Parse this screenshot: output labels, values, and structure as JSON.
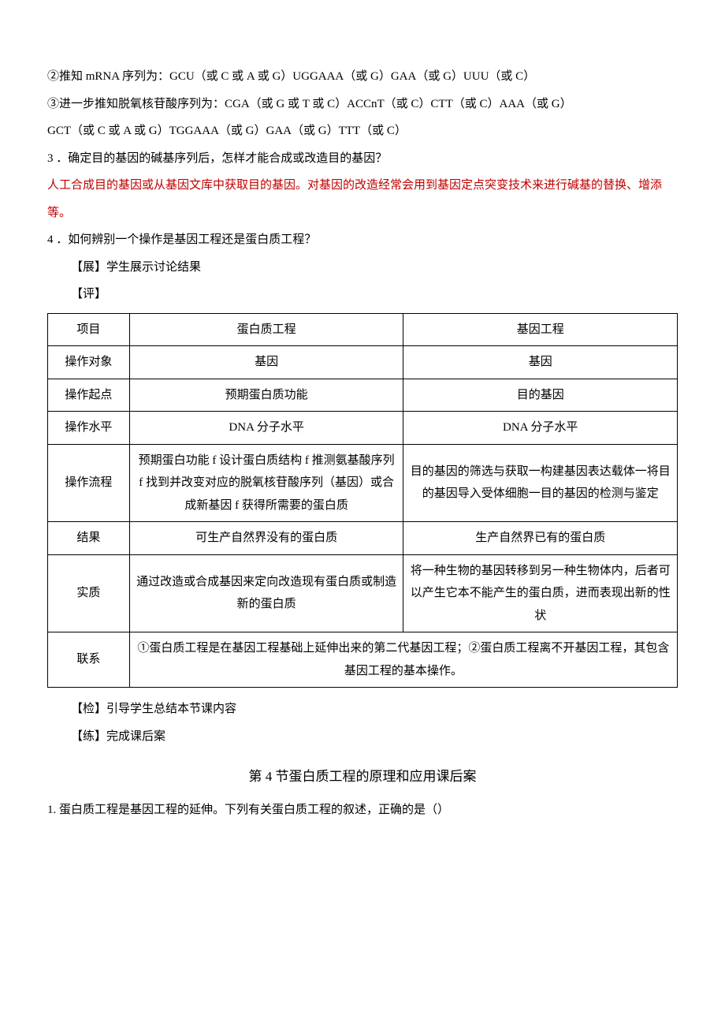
{
  "lines": {
    "l1": "②推知 mRNA 序列为：GCU（或 C 或 A 或 G）UGGAAA（或 G）GAA（或 G）UUU（或 C）",
    "l2": "③进一步推知脱氧核苷酸序列为：CGA（或 G 或 T 或 C）ACCnT（或 C）CTT（或 C）AAA（或 G）",
    "l3": "GCT（或 C 或 A 或 G）TGGAAA（或 G）GAA（或 G）TTT（或 C）",
    "l4": "3 ．确定目的基因的碱基序列后，怎样才能合成或改造目的基因？",
    "l5": "人工合成目的基因或从基因文库中获取目的基因。对基因的改造经常会用到基因定点突变技术来进行碱基的替换、增添等。",
    "l6": "4 ．如何辨别一个操作是基因工程还是蛋白质工程？",
    "l7": "【展】学生展示讨论结果",
    "l8": "【评】",
    "l9": "【检】引导学生总结本节课内容",
    "l10": "【练】完成课后案"
  },
  "table": {
    "header": {
      "c0": "项目",
      "c1": "蛋白质工程",
      "c2": "基因工程"
    },
    "rows": [
      {
        "c0": "操作对象",
        "c1": "基因",
        "c2": "基因"
      },
      {
        "c0": "操作起点",
        "c1": "预期蛋白质功能",
        "c2": "目的基因"
      },
      {
        "c0": "操作水平",
        "c1": "DNA 分子水平",
        "c2": "DNA 分子水平"
      },
      {
        "c0": "操作流程",
        "c1": "预期蛋白功能 f 设计蛋白质结构 f 推测氨基酸序列 f 找到并改变对应的脱氧核苷酸序列（基因）或合成新基因 f 获得所需要的蛋白质",
        "c2": "目的基因的筛选与获取一构建基因表达载体一将目的基因导入受体细胞一目的基因的检测与鉴定"
      },
      {
        "c0": "结果",
        "c1": "可生产自然界没有的蛋白质",
        "c2": "生产自然界已有的蛋白质"
      },
      {
        "c0": "实质",
        "c1": "通过改造或合成基因来定向改造现有蛋白质或制造新的蛋白质",
        "c2": "将一种生物的基因转移到另一种生物体内，后者可以产生它本不能产生的蛋白质，进而表现出新的性状"
      },
      {
        "c0": "联系",
        "cspan": "①蛋白质工程是在基因工程基础上延伸出来的第二代基因工程；②蛋白质工程离不开基因工程，其包含基因工程的基本操作。"
      }
    ]
  },
  "section_title": "第 4 节蛋白质工程的原理和应用课后案",
  "q1": "1. 蛋白质工程是基因工程的延伸。下列有关蛋白质工程的叙述，正确的是（）",
  "style": {
    "text_color": "#000000",
    "highlight_color": "#c00000",
    "background": "#ffffff",
    "border_color": "#000000",
    "font_size_body": 15,
    "font_size_title": 17,
    "line_height": 2.3
  }
}
